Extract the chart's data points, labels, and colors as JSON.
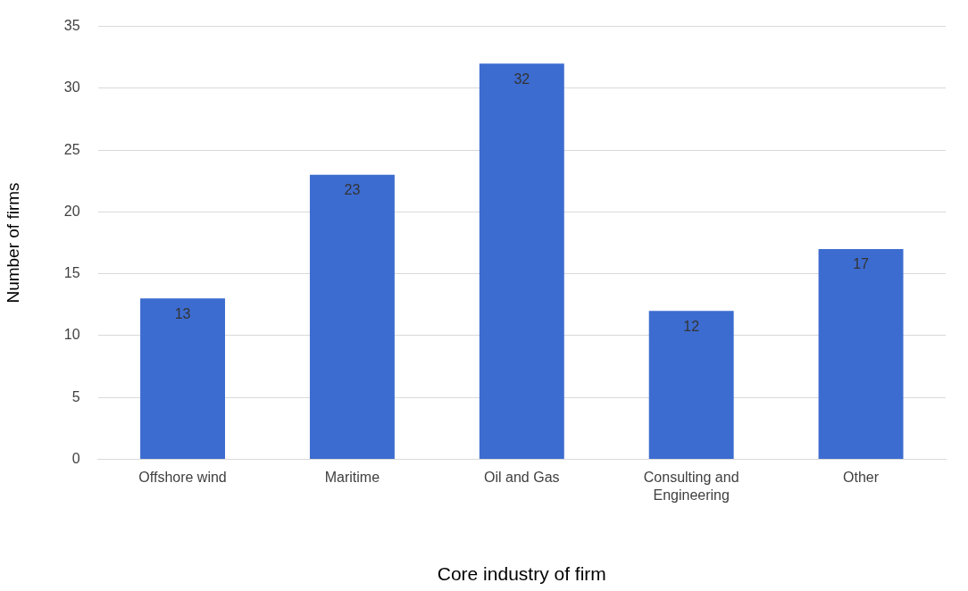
{
  "chart_data": {
    "type": "bar",
    "xlabel": "Core industry of firm",
    "ylabel": "Number of firms",
    "categories": [
      "Offshore wind",
      "Maritime",
      "Oil and Gas",
      [
        "Consulting and",
        "Engineering"
      ],
      "Other"
    ],
    "values": [
      13,
      23,
      32,
      12,
      17
    ],
    "color": "#3d6cd0",
    "ylim": [
      0,
      35
    ],
    "yticks": [
      0,
      5,
      10,
      15,
      20,
      25,
      30,
      35
    ],
    "grid": "y",
    "data_labels": true,
    "legend": false
  }
}
